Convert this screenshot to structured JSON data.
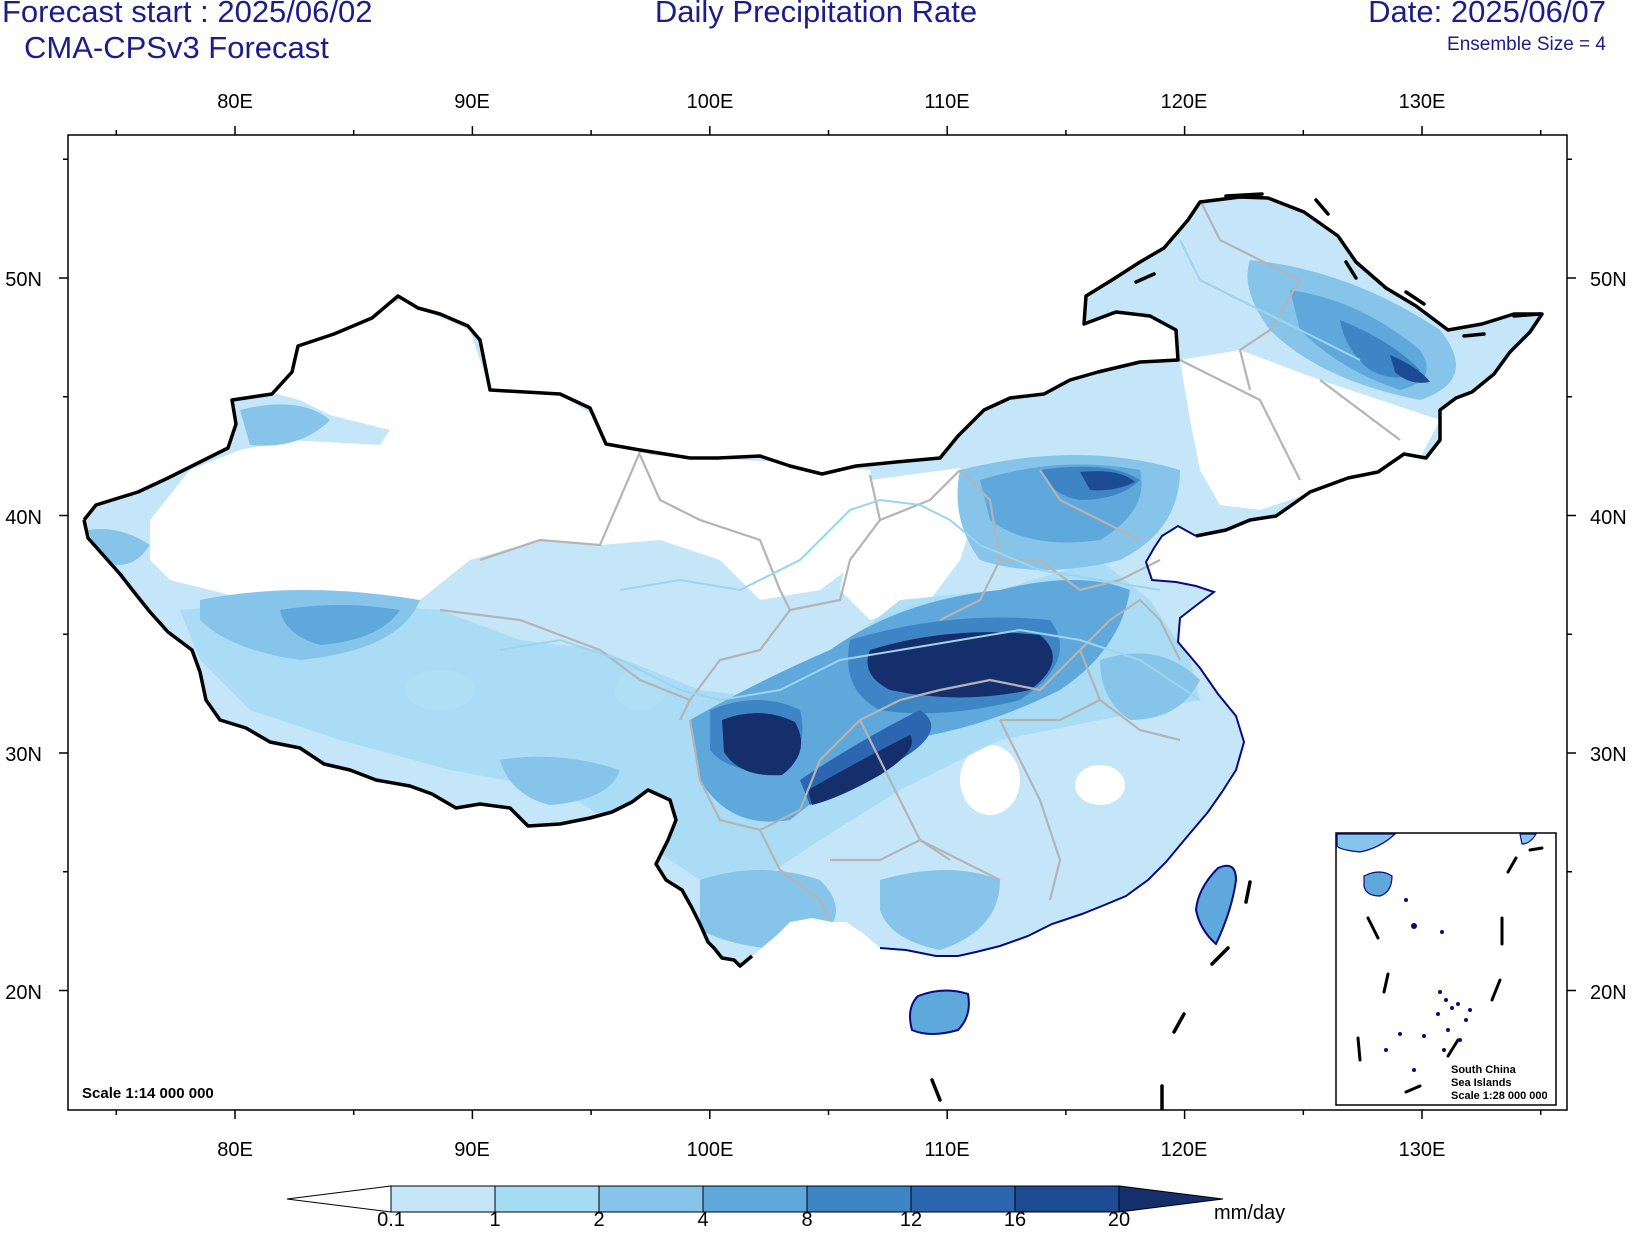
{
  "header": {
    "forecast_start": "Forecast start : 2025/06/02",
    "model": "CMA-CPSv3 Forecast",
    "title": "Daily Precipitation Rate",
    "date": "Date: 2025/06/07",
    "ensemble": "Ensemble Size = 4"
  },
  "map": {
    "lon_ticks": [
      "80E",
      "90E",
      "100E",
      "110E",
      "120E",
      "130E"
    ],
    "lat_ticks": [
      "50N",
      "40N",
      "30N",
      "20N"
    ],
    "scale_text": "Scale 1:14 000 000",
    "inset": {
      "line1": "South China",
      "line2": "Sea Islands",
      "line3": "Scale 1:28 000 000"
    }
  },
  "colorbar": {
    "labels": [
      "0.1",
      "1",
      "2",
      "4",
      "8",
      "12",
      "16",
      "20"
    ],
    "unit": "mm/day",
    "colors": [
      "#ffffff",
      "#c5e6f8",
      "#a6dbf4",
      "#86c4ea",
      "#5fa8db",
      "#3e85c6",
      "#2c66b0",
      "#1c4b94",
      "#152f6d"
    ]
  },
  "colors": {
    "title": "#1c1c8c",
    "border": "#000000",
    "province": "#b4b4b4",
    "river": "#9cd4ee",
    "coast": "#0a0a80"
  }
}
